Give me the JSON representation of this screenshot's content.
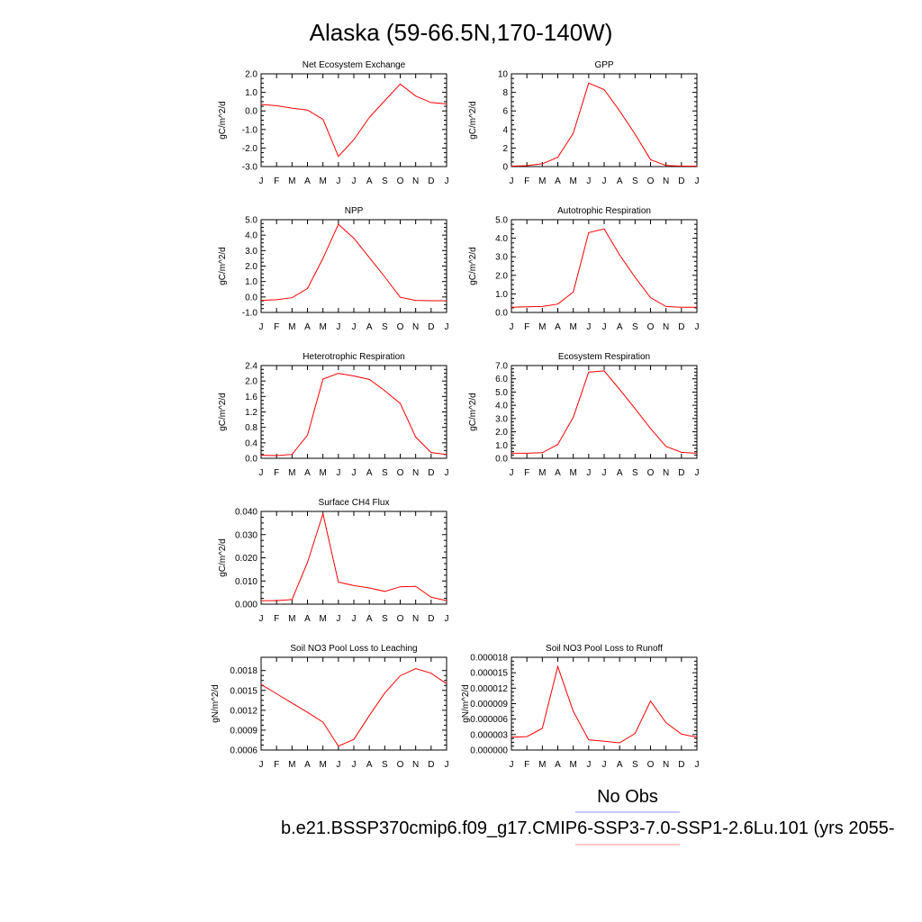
{
  "figure": {
    "title": "Alaska (59-66.5N,170-140W)",
    "legend": [
      {
        "label": "No Obs",
        "color": "#8c96ff"
      },
      {
        "label": "b.e21.BSSP370cmip6.f09_g17.CMIP6-SSP3-7.0-SSP1-2.6Lu.101 (yrs 2055-",
        "color": "#ff8c8c"
      }
    ],
    "line_color": "#ff0000"
  },
  "chart_data": [
    {
      "type": "line",
      "title": "Net Ecosystem Exchange",
      "ylabel": "gC/m^2/d",
      "categories": [
        "J",
        "F",
        "M",
        "A",
        "M",
        "J",
        "J",
        "A",
        "S",
        "O",
        "N",
        "D",
        "J"
      ],
      "ylim": [
        -3.0,
        2.0
      ],
      "yticks": [
        "-3.0",
        "-2.0",
        "-1.0",
        "0.0",
        "1.0",
        "2.0"
      ],
      "series": [
        {
          "values": [
            0.35,
            0.28,
            0.15,
            0.05,
            -0.45,
            -2.45,
            -1.55,
            -0.35,
            0.55,
            1.45,
            0.8,
            0.45,
            0.38
          ]
        }
      ]
    },
    {
      "type": "line",
      "title": "GPP",
      "ylabel": "gC/m^2/d",
      "categories": [
        "J",
        "F",
        "M",
        "A",
        "M",
        "J",
        "J",
        "A",
        "S",
        "O",
        "N",
        "D",
        "J"
      ],
      "ylim": [
        0,
        10
      ],
      "yticks": [
        "0",
        "2",
        "4",
        "6",
        "8",
        "10"
      ],
      "series": [
        {
          "values": [
            0.05,
            0.1,
            0.3,
            1.0,
            3.6,
            9.0,
            8.3,
            6.0,
            3.5,
            0.75,
            0.12,
            0.05,
            0.05
          ]
        }
      ]
    },
    {
      "type": "line",
      "title": "NPP",
      "ylabel": "gC/m^2/d",
      "categories": [
        "J",
        "F",
        "M",
        "A",
        "M",
        "J",
        "J",
        "A",
        "S",
        "O",
        "N",
        "D",
        "J"
      ],
      "ylim": [
        -1.0,
        5.0
      ],
      "yticks": [
        "-1.0",
        "0.0",
        "1.0",
        "2.0",
        "3.0",
        "4.0",
        "5.0"
      ],
      "series": [
        {
          "values": [
            -0.22,
            -0.18,
            -0.05,
            0.55,
            2.5,
            4.7,
            3.8,
            2.55,
            1.3,
            -0.02,
            -0.22,
            -0.24,
            -0.24
          ]
        }
      ]
    },
    {
      "type": "line",
      "title": "Autotrophic Respiration",
      "ylabel": "gC/m^2/d",
      "categories": [
        "J",
        "F",
        "M",
        "A",
        "M",
        "J",
        "J",
        "A",
        "S",
        "O",
        "N",
        "D",
        "J"
      ],
      "ylim": [
        0.0,
        5.0
      ],
      "yticks": [
        "0.0",
        "1.0",
        "2.0",
        "3.0",
        "4.0",
        "5.0"
      ],
      "series": [
        {
          "values": [
            0.28,
            0.3,
            0.32,
            0.45,
            1.1,
            4.3,
            4.5,
            3.1,
            1.9,
            0.8,
            0.32,
            0.28,
            0.28
          ]
        }
      ]
    },
    {
      "type": "line",
      "title": "Heterotrophic Respiration",
      "ylabel": "gC/m^2/d",
      "categories": [
        "J",
        "F",
        "M",
        "A",
        "M",
        "J",
        "J",
        "A",
        "S",
        "O",
        "N",
        "D",
        "J"
      ],
      "ylim": [
        0.0,
        2.4
      ],
      "yticks": [
        "0.0",
        "0.4",
        "0.8",
        "1.2",
        "1.6",
        "2.0",
        "2.4"
      ],
      "series": [
        {
          "values": [
            0.08,
            0.07,
            0.1,
            0.6,
            2.05,
            2.2,
            2.13,
            2.04,
            1.75,
            1.42,
            0.55,
            0.15,
            0.1
          ]
        }
      ]
    },
    {
      "type": "line",
      "title": "Ecosystem Respiration",
      "ylabel": "gC/m^2/d",
      "categories": [
        "J",
        "F",
        "M",
        "A",
        "M",
        "J",
        "J",
        "A",
        "S",
        "O",
        "N",
        "D",
        "J"
      ],
      "ylim": [
        0.0,
        7.0
      ],
      "yticks": [
        "0.0",
        "1.0",
        "2.0",
        "3.0",
        "4.0",
        "5.0",
        "6.0",
        "7.0"
      ],
      "series": [
        {
          "values": [
            0.38,
            0.38,
            0.42,
            1.05,
            3.1,
            6.5,
            6.6,
            5.2,
            3.75,
            2.25,
            0.9,
            0.45,
            0.38
          ]
        }
      ]
    },
    {
      "type": "line",
      "title": "Surface CH4 Flux",
      "ylabel": "gC/m^2/d",
      "categories": [
        "J",
        "F",
        "M",
        "A",
        "M",
        "J",
        "J",
        "A",
        "S",
        "O",
        "N",
        "D",
        "J"
      ],
      "ylim": [
        0.0,
        0.04
      ],
      "yticks": [
        "0.000",
        "0.010",
        "0.020",
        "0.030",
        "0.040"
      ],
      "series": [
        {
          "values": [
            0.0015,
            0.0015,
            0.002,
            0.018,
            0.039,
            0.0095,
            0.008,
            0.007,
            0.0055,
            0.0075,
            0.0077,
            0.003,
            0.0015
          ]
        }
      ]
    },
    {
      "type": "line",
      "title": "Soil NO3 Pool Loss to Leaching",
      "ylabel": "gN/m^2/d",
      "categories": [
        "J",
        "F",
        "M",
        "A",
        "M",
        "J",
        "J",
        "A",
        "S",
        "O",
        "N",
        "D",
        "J"
      ],
      "ylim": [
        0.0006,
        0.002
      ],
      "yticks": [
        "0.0006",
        "0.0009",
        "0.0012",
        "0.0015",
        "0.0018"
      ],
      "series": [
        {
          "values": [
            0.00159,
            0.00145,
            0.00131,
            0.00117,
            0.00102,
            0.00066,
            0.00076,
            0.00112,
            0.00146,
            0.00172,
            0.00183,
            0.00176,
            0.0016
          ]
        }
      ]
    },
    {
      "type": "line",
      "title": "Soil NO3 Pool Loss to Runoff",
      "ylabel": "gN/m^2/d",
      "categories": [
        "J",
        "F",
        "M",
        "A",
        "M",
        "J",
        "J",
        "A",
        "S",
        "O",
        "N",
        "D",
        "J"
      ],
      "ylim": [
        0.0,
        1.8e-05
      ],
      "yticks": [
        "0.000000",
        "0.000003",
        "0.000006",
        "0.000009",
        "0.000012",
        "0.000015",
        "0.000018"
      ],
      "series": [
        {
          "values": [
            2.5e-06,
            2.6e-06,
            4.2e-06,
            1.62e-05,
            7.5e-06,
            2e-06,
            1.7e-06,
            1.4e-06,
            3.2e-06,
            9.5e-06,
            5.3e-06,
            3.1e-06,
            2.5e-06
          ]
        }
      ]
    }
  ]
}
